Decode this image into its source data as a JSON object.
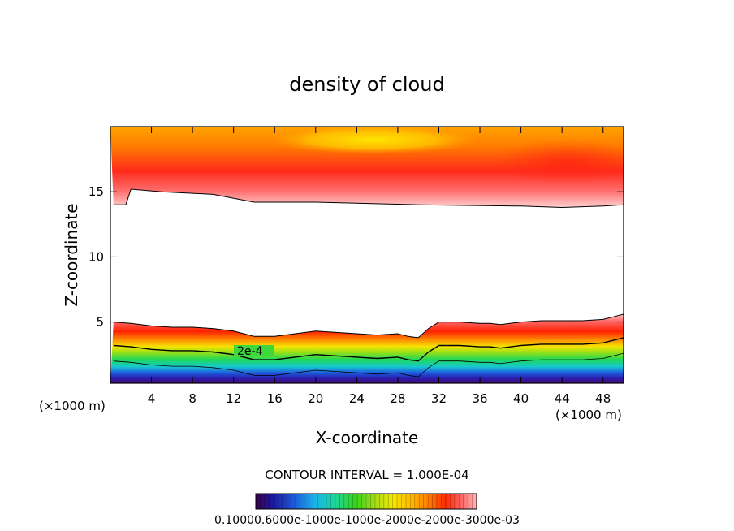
{
  "chart_data": {
    "type": "heatmap",
    "title": "density of cloud",
    "xlabel": "X-coordinate",
    "ylabel": "Z-coordinate",
    "x_unit": "(×1000 m)",
    "xlim": [
      0,
      50
    ],
    "ylim": [
      0.3,
      20
    ],
    "x_ticks": [
      4,
      8,
      12,
      16,
      20,
      24,
      28,
      32,
      36,
      40,
      44,
      48
    ],
    "y_ticks": [
      5,
      10,
      15
    ],
    "contour_interval_text": "CONTOUR INTERVAL = 1.000E-04",
    "contour_interval": 0.0001,
    "contour_label": "2e-4",
    "colorbar_labels_text": "0.10000.6000e-1000e-1000e-2000e-2000e-3000e-03",
    "cloud_layers": {
      "lower_top_z": [
        5.0,
        4.9,
        4.7,
        4.6,
        4.6,
        4.5,
        4.3,
        4.1,
        3.9,
        3.9,
        4.1,
        4.3,
        4.2,
        4.1,
        4.0,
        4.1,
        3.9,
        3.8,
        4.5,
        5.0,
        5.0,
        4.9,
        4.9,
        4.8,
        5.0,
        5.1,
        5.1,
        5.1,
        5.2,
        5.4,
        5.6
      ],
      "lower_top_x": [
        0.3,
        2,
        4,
        6,
        8,
        10,
        12,
        13,
        14,
        16,
        18,
        20,
        22,
        24,
        26,
        28,
        29,
        30,
        31,
        32,
        34,
        36,
        37,
        38,
        40,
        42,
        44,
        46,
        48,
        49,
        50
      ],
      "upper_bottom_x": [
        0.3,
        1.5,
        2,
        5,
        10,
        14,
        20,
        30,
        40,
        44,
        48,
        50
      ],
      "upper_bottom_z": [
        14.0,
        14.0,
        15.2,
        15.0,
        14.8,
        14.2,
        14.2,
        14.0,
        13.9,
        13.8,
        13.9,
        14.0
      ]
    },
    "colors": {
      "colorbar": [
        "#3a0050",
        "#1b1b9e",
        "#1f56d8",
        "#19b4ea",
        "#1cd69a",
        "#34d41c",
        "#a6dc16",
        "#f2e800",
        "#ffbb00",
        "#ff7e00",
        "#ff2a00",
        "#ff6464",
        "#ffb4b4"
      ]
    }
  }
}
